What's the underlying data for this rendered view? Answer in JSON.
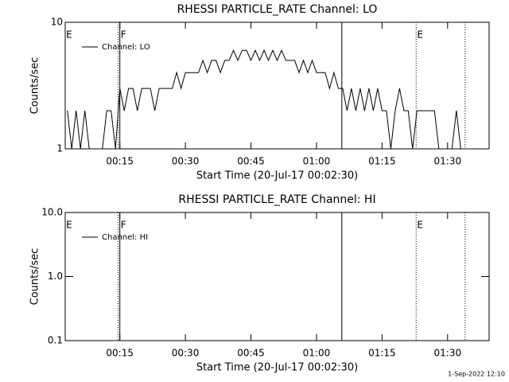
{
  "chart_data": [
    {
      "type": "line",
      "title": "RHESSI PARTICLE_RATE Channel: LO",
      "xlabel": "Start Time (20-Jul-17 00:02:30)",
      "ylabel": "Counts/sec",
      "log_y": true,
      "legend": "upper left",
      "xlim": [
        2.5,
        99.5
      ],
      "xticks": [
        {
          "value": 15,
          "label": "00:15"
        },
        {
          "value": 30,
          "label": "00:30"
        },
        {
          "value": 45,
          "label": "00:45"
        },
        {
          "value": 60,
          "label": "01:00"
        },
        {
          "value": 75,
          "label": "01:15"
        },
        {
          "value": 90,
          "label": "01:30"
        }
      ],
      "ylim": [
        1,
        10
      ],
      "yticks": [
        1,
        10
      ],
      "x": [
        3,
        4,
        5,
        6,
        7,
        8,
        9,
        10,
        11,
        12,
        13,
        14,
        15,
        16,
        17,
        18,
        19,
        20,
        21,
        22,
        23,
        24,
        25,
        26,
        27,
        28,
        29,
        30,
        31,
        32,
        33,
        34,
        35,
        36,
        37,
        38,
        39,
        40,
        41,
        42,
        43,
        44,
        45,
        46,
        47,
        48,
        49,
        50,
        51,
        52,
        53,
        54,
        55,
        56,
        57,
        58,
        59,
        60,
        61,
        62,
        63,
        64,
        65,
        66,
        67,
        68,
        69,
        70,
        71,
        72,
        73,
        74,
        75,
        76,
        77,
        78,
        79,
        80,
        81,
        82,
        83,
        84,
        85,
        86,
        87,
        88,
        89,
        90,
        91,
        92,
        93
      ],
      "series": [
        {
          "name": "Channel: LO",
          "color": "#000000",
          "values": [
            2,
            1,
            2,
            1,
            2,
            1,
            1,
            1,
            1,
            2,
            2,
            1,
            3,
            2,
            3,
            3,
            2,
            3,
            3,
            3,
            2,
            3,
            3,
            3,
            3,
            4,
            3,
            4,
            4,
            4,
            4,
            5,
            4,
            5,
            5,
            4,
            5,
            5,
            6,
            5,
            6,
            6,
            5,
            6,
            5,
            6,
            5,
            6,
            5,
            6,
            5,
            5,
            5,
            4,
            5,
            4,
            5,
            4,
            4,
            4,
            3,
            4,
            3,
            3,
            2,
            3,
            2,
            3,
            2,
            3,
            2,
            3,
            2,
            2,
            1,
            2,
            3,
            2,
            2,
            1,
            2,
            2,
            2,
            2,
            2,
            1,
            1,
            1,
            1,
            2,
            1
          ]
        }
      ],
      "vlines": [
        {
          "x": 14.6,
          "style": "dotted"
        },
        {
          "x": 15,
          "style": "solid"
        },
        {
          "x": 65.8,
          "style": "solid"
        },
        {
          "x": 82.8,
          "style": "dotted"
        },
        {
          "x": 94,
          "style": "dotted"
        }
      ],
      "annotations": [
        {
          "text": "E",
          "x": 2.7
        },
        {
          "text": "F",
          "x": 15.2
        },
        {
          "text": "E",
          "x": 83
        }
      ]
    },
    {
      "type": "line",
      "title": "RHESSI PARTICLE_RATE Channel: HI",
      "xlabel": "Start Time (20-Jul-17 00:02:30)",
      "ylabel": "Counts/sec",
      "log_y": true,
      "legend": "upper left",
      "xlim": [
        2.5,
        99.5
      ],
      "xticks": [
        {
          "value": 15,
          "label": "00:15"
        },
        {
          "value": 30,
          "label": "00:30"
        },
        {
          "value": 45,
          "label": "00:45"
        },
        {
          "value": 60,
          "label": "01:00"
        },
        {
          "value": 75,
          "label": "01:15"
        },
        {
          "value": 90,
          "label": "01:30"
        }
      ],
      "ylim": [
        0.1,
        10
      ],
      "yticks": [
        0.1,
        {
          "value": 1,
          "label": "1.0"
        },
        {
          "value": 10,
          "label": "10.0"
        }
      ],
      "x": [],
      "series": [
        {
          "name": "Channel: HI",
          "color": "#000000",
          "values": []
        }
      ],
      "vlines": [
        {
          "x": 14.6,
          "style": "dotted"
        },
        {
          "x": 15,
          "style": "solid"
        },
        {
          "x": 65.8,
          "style": "solid"
        },
        {
          "x": 82.8,
          "style": "dotted"
        },
        {
          "x": 94,
          "style": "dotted"
        }
      ],
      "annotations": [
        {
          "text": "E",
          "x": 2.7
        },
        {
          "text": "F",
          "x": 15.2
        },
        {
          "text": "E",
          "x": 83
        }
      ]
    }
  ],
  "footer": "1-Sep-2022 12:10"
}
